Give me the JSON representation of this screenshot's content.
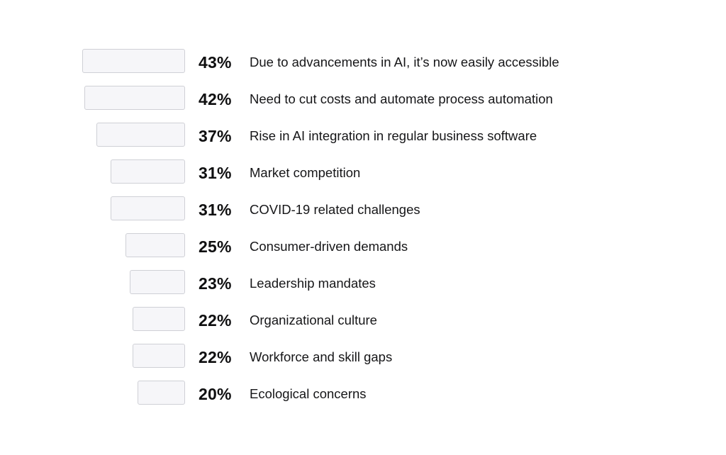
{
  "chart_data": {
    "type": "bar",
    "orientation": "horizontal",
    "xlim": [
      0,
      43
    ],
    "categories": [
      "Due to advancements in AI, it’s now easily accessible",
      "Need to cut costs and automate process automation",
      "Rise in AI integration in regular business software",
      "Market competition",
      "COVID-19 related challenges",
      "Consumer-driven demands",
      "Leadership mandates",
      "Organizational culture",
      "Workforce and skill gaps",
      "Ecological concerns"
    ],
    "values": [
      43,
      42,
      37,
      31,
      31,
      25,
      23,
      22,
      22,
      20
    ],
    "value_labels": [
      "43%",
      "42%",
      "37%",
      "31%",
      "31%",
      "25%",
      "23%",
      "22%",
      "22%",
      "20%"
    ],
    "bar_color": "#f6f6f9",
    "bar_border_color": "#cfd0d6"
  }
}
